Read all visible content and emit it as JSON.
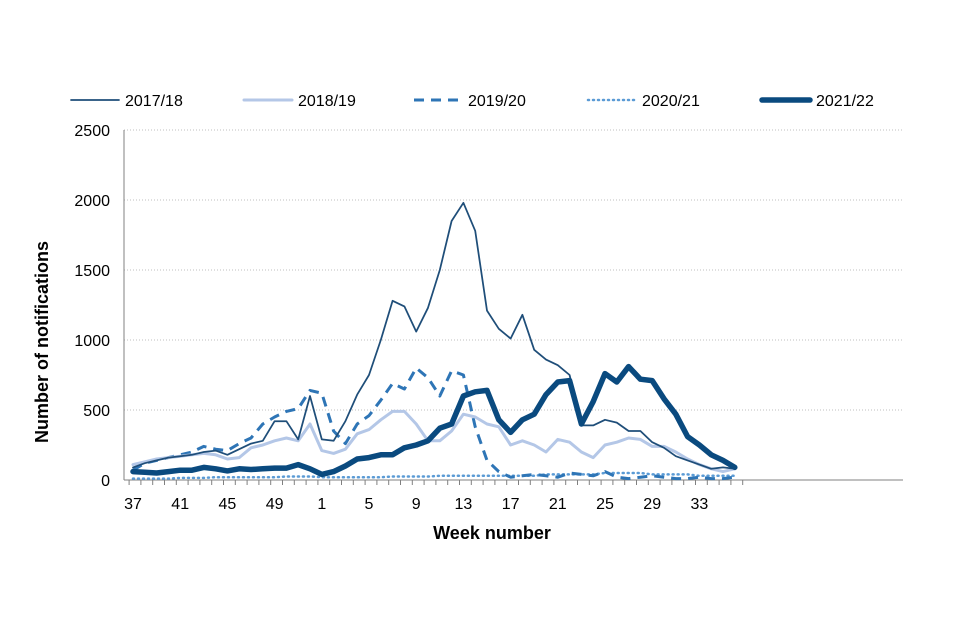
{
  "chart_data": {
    "type": "line",
    "xlabel": "Week number",
    "ylabel": "Number of notifications",
    "ylim": [
      0,
      2500
    ],
    "y_ticks": [
      0,
      500,
      1000,
      1500,
      2000,
      2500
    ],
    "x_tick_labels": [
      "37",
      "41",
      "45",
      "49",
      "1",
      "5",
      "9",
      "13",
      "17",
      "21",
      "25",
      "29",
      "33"
    ],
    "grid": "horizontal dotted",
    "legend_position": "top",
    "weeks": [
      "37",
      "38",
      "39",
      "40",
      "41",
      "42",
      "43",
      "44",
      "45",
      "46",
      "47",
      "48",
      "49",
      "50",
      "51",
      "52",
      "1",
      "2",
      "3",
      "4",
      "5",
      "6",
      "7",
      "8",
      "9",
      "10",
      "11",
      "12",
      "13",
      "14",
      "15",
      "16",
      "17",
      "18",
      "19",
      "20",
      "21",
      "22",
      "23",
      "24",
      "25",
      "26",
      "27",
      "28",
      "29",
      "30",
      "31",
      "32",
      "33",
      "34",
      "35",
      "36"
    ],
    "series": [
      {
        "name": "2017/18",
        "color": "#1f4e79",
        "style": "thin",
        "values": [
          90,
          120,
          140,
          160,
          170,
          180,
          200,
          210,
          180,
          220,
          260,
          280,
          420,
          420,
          290,
          600,
          290,
          280,
          420,
          610,
          750,
          1000,
          1280,
          1240,
          1060,
          1230,
          1500,
          1850,
          1980,
          1780,
          1210,
          1080,
          1010,
          1180,
          930,
          860,
          820,
          750,
          390,
          390,
          430,
          410,
          350,
          350,
          270,
          230,
          170,
          140,
          110,
          80,
          90,
          80
        ]
      },
      {
        "name": "2018/19",
        "color": "#b4c7e7",
        "style": "solid",
        "values": [
          110,
          130,
          150,
          160,
          170,
          180,
          190,
          180,
          150,
          160,
          230,
          250,
          280,
          300,
          280,
          400,
          210,
          190,
          220,
          330,
          360,
          430,
          490,
          490,
          400,
          280,
          280,
          350,
          470,
          450,
          400,
          380,
          250,
          280,
          250,
          200,
          290,
          270,
          200,
          160,
          250,
          270,
          300,
          290,
          240,
          240,
          200,
          150,
          110,
          80,
          60,
          80
        ]
      },
      {
        "name": "2019/20",
        "color": "#2e75b6",
        "style": "dashed",
        "values": [
          70,
          120,
          140,
          160,
          180,
          200,
          240,
          220,
          210,
          260,
          300,
          400,
          450,
          490,
          510,
          640,
          620,
          350,
          260,
          400,
          460,
          570,
          690,
          650,
          800,
          730,
          600,
          780,
          750,
          380,
          140,
          60,
          20,
          30,
          40,
          30,
          20,
          50,
          40,
          30,
          60,
          20,
          10,
          20,
          30,
          20,
          10,
          10,
          20,
          10,
          10,
          20
        ]
      },
      {
        "name": "2020/21",
        "color": "#5b9bd5",
        "style": "dotted",
        "values": [
          10,
          10,
          10,
          10,
          15,
          15,
          15,
          20,
          20,
          20,
          20,
          20,
          20,
          25,
          25,
          25,
          20,
          20,
          20,
          20,
          20,
          20,
          25,
          25,
          25,
          25,
          30,
          30,
          30,
          30,
          30,
          30,
          30,
          30,
          30,
          40,
          40,
          40,
          40,
          40,
          50,
          50,
          50,
          50,
          40,
          40,
          40,
          40,
          30,
          30,
          30,
          30
        ]
      },
      {
        "name": "2021/22",
        "color": "#0a4a7f",
        "style": "thick",
        "values": [
          60,
          55,
          50,
          60,
          70,
          70,
          90,
          80,
          65,
          80,
          75,
          80,
          85,
          85,
          110,
          80,
          40,
          60,
          100,
          150,
          160,
          180,
          180,
          230,
          250,
          280,
          370,
          400,
          600,
          630,
          640,
          430,
          340,
          430,
          470,
          610,
          700,
          710,
          400,
          560,
          760,
          700,
          810,
          720,
          710,
          580,
          470,
          310,
          250,
          180,
          140,
          90
        ]
      }
    ]
  }
}
